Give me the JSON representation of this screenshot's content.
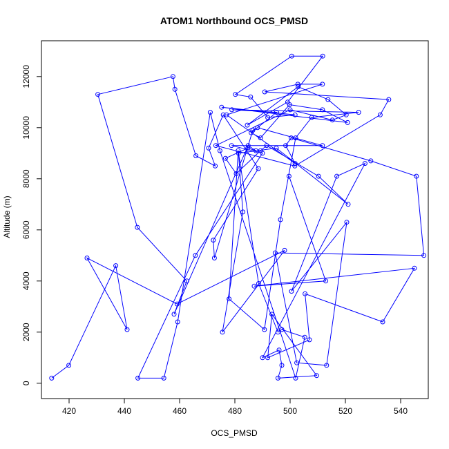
{
  "chart_data": {
    "type": "line",
    "title": "ATOM1 Northbound OCS_PMSD",
    "xlabel": "OCS_PMSD",
    "ylabel": "Altitude (m)",
    "xlim": [
      410,
      550
    ],
    "ylim": [
      -600,
      13400
    ],
    "xticks": [
      420,
      440,
      460,
      480,
      500,
      520,
      540
    ],
    "yticks": [
      0,
      2000,
      4000,
      6000,
      8000,
      10000,
      12000
    ],
    "grid": false,
    "legend": "none",
    "series": [
      {
        "line_color": "#0000ff",
        "marker": "open-circle",
        "x": [
          413.7,
          419.9,
          436.9,
          441.0,
          426.5,
          459.1,
          498.0,
          475.5,
          482.9,
          481.3,
          495.0,
          521.0,
          510.3,
          491.5,
          489.3,
          480.5,
          476.6,
          484.7,
          487.6,
          484.8,
          458.0,
          462.6,
          444.7,
          430.4,
          457.6,
          458.3,
          465.9,
          472.9,
          470.5,
          475.8,
          488.5,
          472.2,
          472.6,
          486.5,
          488.2,
          511.7,
          478.8,
          490.0,
          465.7,
          444.9,
          454.3,
          459.3,
          471.1,
          474.6,
          502.0,
          505.3,
          497.0,
          495.6,
          488.6,
          481.2,
          477.9,
          490.7,
          496.5,
          502.0,
          507.8,
          524.8,
          478.9,
          495.1,
          485.9,
          489.3,
          499.8,
          511.7,
          520.8,
          475.2,
          501.8,
          491.9,
          485.7,
          480.2,
          500.6,
          511.8,
          499.1,
          484.5,
          502.9,
          513.7,
          520.3,
          515.3,
          500.0,
          473.1,
          501.7,
          532.6,
          535.7,
          490.8,
          502.8,
          511.7,
          477.0,
          501.8,
          498.4,
          500.4,
          529.2,
          545.7,
          548.4,
          494.6,
          502.4,
          513.2,
          520.5,
          500.5,
          516.9,
          527.1,
          490.0,
          496.0,
          497.0,
          495.6,
          509.6,
          493.4,
          491.9,
          507.0,
          505.4,
          533.5,
          545.0,
          487.0,
          512.9,
          499.6
        ],
        "y": [
          200,
          700,
          4600,
          2100,
          4900,
          3100,
          5200,
          2000,
          6700,
          9000,
          9200,
          7000,
          8100,
          9300,
          9100,
          8200,
          8800,
          9200,
          9100,
          9300,
          2700,
          4000,
          6100,
          11300,
          12000,
          11500,
          8900,
          8500,
          9200,
          10500,
          8400,
          5600,
          4900,
          9900,
          10000,
          9300,
          9300,
          9000,
          5000,
          200,
          200,
          2400,
          10600,
          9100,
          200,
          1800,
          2100,
          2000,
          3900,
          9100,
          3300,
          2100,
          6400,
          9600,
          10400,
          10600,
          10700,
          10600,
          9800,
          9600,
          10900,
          10700,
          10200,
          10800,
          10500,
          10400,
          11200,
          11300,
          12800,
          12800,
          11000,
          10100,
          11600,
          11100,
          10500,
          10300,
          10700,
          9300,
          8500,
          10500,
          11100,
          11400,
          11700,
          11700,
          10500,
          8600,
          9300,
          9600,
          8700,
          8100,
          5000,
          5100,
          800,
          700,
          6300,
          3600,
          8100,
          8600,
          1000,
          1300,
          700,
          200,
          300,
          2700,
          1000,
          1700,
          3500,
          2400,
          4500,
          3800,
          4000,
          8100
        ]
      }
    ]
  }
}
